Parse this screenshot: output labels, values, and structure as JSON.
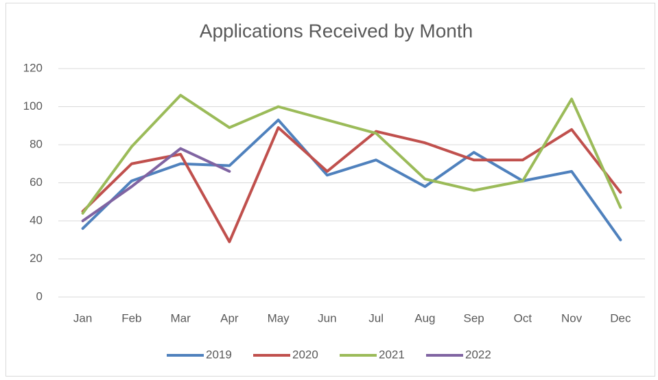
{
  "chart_data": {
    "type": "line",
    "title": "Applications Received by Month",
    "categories": [
      "Jan",
      "Feb",
      "Mar",
      "Apr",
      "May",
      "Jun",
      "Jul",
      "Aug",
      "Sep",
      "Oct",
      "Nov",
      "Dec"
    ],
    "series": [
      {
        "name": "2019",
        "color": "#4f81bd",
        "values": [
          36,
          61,
          70,
          69,
          93,
          64,
          72,
          58,
          76,
          61,
          66,
          30
        ]
      },
      {
        "name": "2020",
        "color": "#c0504d",
        "values": [
          45,
          70,
          75,
          29,
          89,
          66,
          87,
          81,
          72,
          72,
          88,
          55
        ]
      },
      {
        "name": "2021",
        "color": "#9bbb59",
        "values": [
          44,
          79,
          106,
          89,
          100,
          93,
          86,
          62,
          56,
          61,
          104,
          47
        ]
      },
      {
        "name": "2022",
        "color": "#8064a2",
        "values": [
          40,
          58,
          78,
          66,
          null,
          null,
          null,
          null,
          null,
          null,
          null,
          null
        ]
      }
    ],
    "ylim": [
      0,
      120
    ],
    "yticks": [
      0,
      20,
      40,
      60,
      80,
      100,
      120
    ],
    "grid": true,
    "legend": "bottom"
  }
}
